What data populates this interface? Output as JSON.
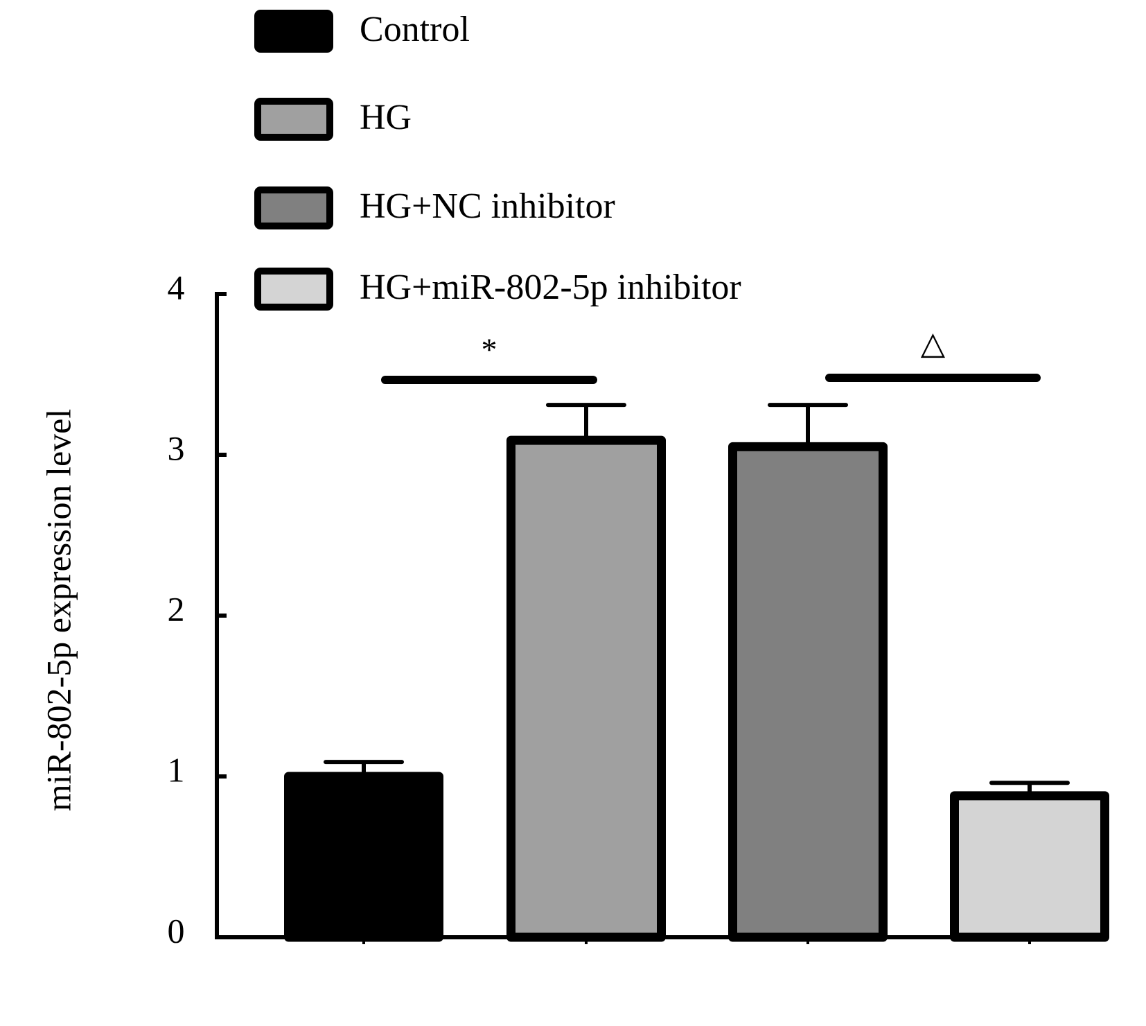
{
  "chart_data": {
    "type": "bar",
    "y_label": "miR-802-5p expression level",
    "categories": [
      "Control",
      "HG",
      "HG+NC inhibitor",
      "HG+miR-802-5p inhibitor"
    ],
    "colors": [
      "#000000",
      "#a0a0a0",
      "#808080",
      "#d4d4d4"
    ],
    "values": [
      1.0,
      3.09,
      3.05,
      0.88
    ],
    "errors": [
      0.09,
      0.22,
      0.26,
      0.08
    ],
    "ylim": [
      0,
      4
    ],
    "yticks": [
      0,
      1,
      2,
      3,
      4
    ],
    "annotations": [
      "*",
      "△"
    ]
  }
}
